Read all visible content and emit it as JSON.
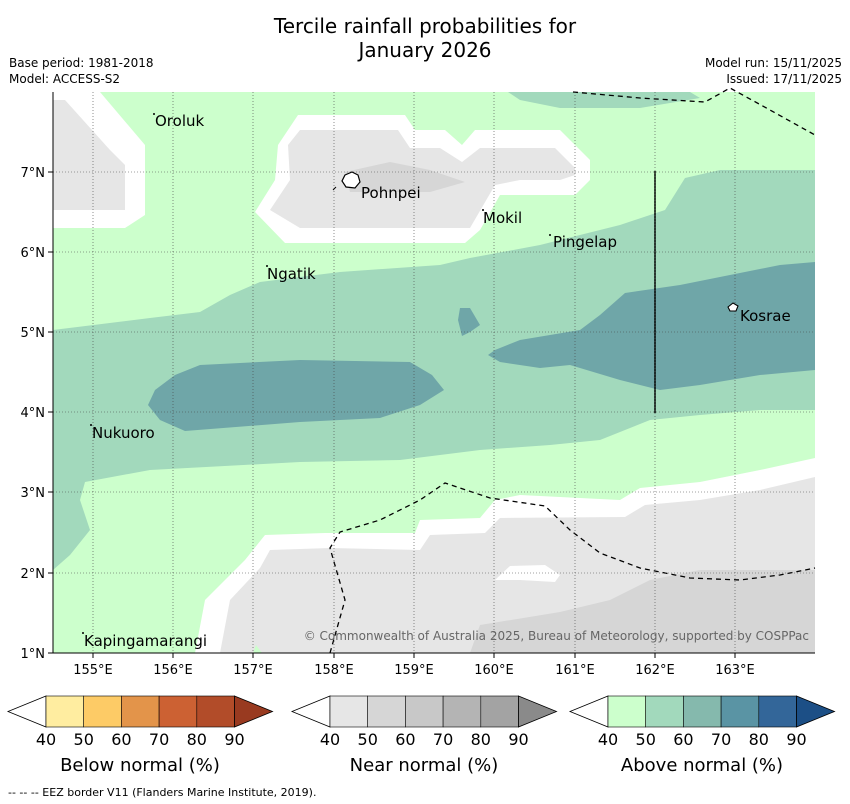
{
  "header": {
    "title_line1": "Tercile rainfall probabilities for",
    "title_line2": "January 2026",
    "base_period": "Base period: 1981-2018",
    "model": "Model: ACCESS-S2",
    "model_run": "Model run: 15/11/2025",
    "issued": "Issued: 17/11/2025"
  },
  "map": {
    "lon_range": [
      154.5,
      164.0
    ],
    "lat_range": [
      1.0,
      8.0
    ],
    "x_ticks": [
      "155°E",
      "156°E",
      "157°E",
      "158°E",
      "159°E",
      "160°E",
      "161°E",
      "162°E",
      "163°E"
    ],
    "y_ticks": [
      "1°N",
      "2°N",
      "3°N",
      "4°N",
      "5°N",
      "6°N",
      "7°N"
    ],
    "places": [
      {
        "name": "Oroluk"
      },
      {
        "name": "Pohnpei"
      },
      {
        "name": "Mokil"
      },
      {
        "name": "Pingelap"
      },
      {
        "name": "Ngatik"
      },
      {
        "name": "Kosrae"
      },
      {
        "name": "Nukuoro"
      },
      {
        "name": "Kapingamarangi"
      }
    ],
    "copyright": "© Commonwealth of Australia 2025, Bureau of Meteorology, supported by COSPPac"
  },
  "colorbars": [
    {
      "label": "Below normal (%)",
      "ticks": [
        "40",
        "50",
        "60",
        "70",
        "80",
        "90"
      ],
      "colors": [
        "#ffffff",
        "#ffeda0",
        "#fdcb66",
        "#e3944a",
        "#cc6133",
        "#b24c29",
        "#993a20"
      ]
    },
    {
      "label": "Near normal (%)",
      "ticks": [
        "40",
        "50",
        "60",
        "70",
        "80",
        "90"
      ],
      "colors": [
        "#ffffff",
        "#e6e6e6",
        "#d6d6d6",
        "#c8c8c8",
        "#b4b4b4",
        "#a3a3a3",
        "#8a8a8a"
      ]
    },
    {
      "label": "Above normal (%)",
      "ticks": [
        "40",
        "50",
        "60",
        "70",
        "80",
        "90"
      ],
      "colors": [
        "#ffffff",
        "#ccffcc",
        "#a2d9bc",
        "#85b9ad",
        "#5a94a4",
        "#336699",
        "#1c4f86"
      ]
    }
  ],
  "footer": "--  --  -- EEZ border V11 (Flanders Marine Institute, 2019)."
}
